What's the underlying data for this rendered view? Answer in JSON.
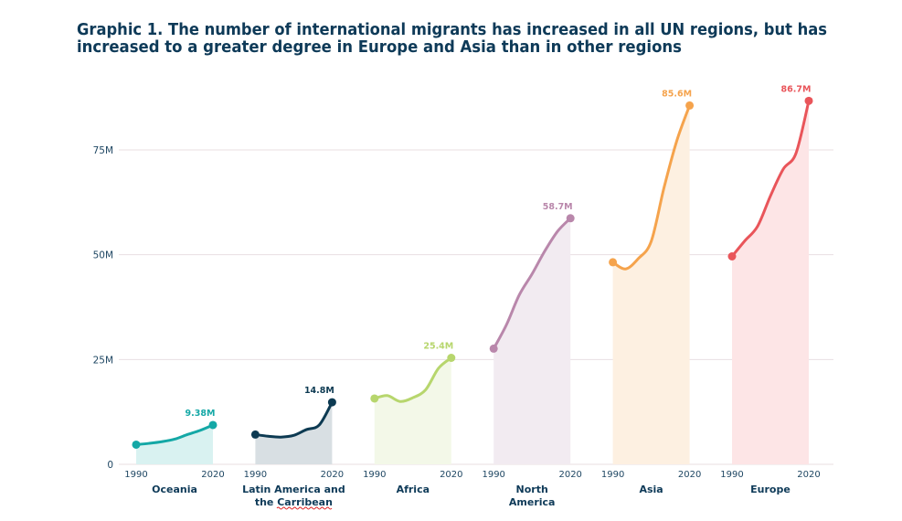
{
  "chart_data": {
    "type": "line",
    "title": "Graphic 1. The number of international migrants has increased in all UN regions, but has increased to a greater degree in Europe and Asia than in other regions",
    "title_lines": [
      "Graphic 1. The number of international migrants has increased in all UN regions, but has",
      "increased to a greater degree in Europe and Asia than in other regions"
    ],
    "xlabel": "",
    "ylabel": "",
    "x": [
      1990,
      1995,
      2000,
      2005,
      2010,
      2015,
      2020
    ],
    "xtick_labels": [
      "1990",
      "2020"
    ],
    "yticks": [
      0,
      25,
      50,
      75
    ],
    "ytick_labels": [
      "0",
      "25M",
      "50M",
      "75M"
    ],
    "ylim": [
      0,
      90
    ],
    "grid": true,
    "legend": "none",
    "series": [
      {
        "name": "Oceania",
        "label_lines": [
          "Oceania"
        ],
        "values": [
          4.7,
          5.0,
          5.4,
          6.0,
          7.1,
          8.1,
          9.38
        ],
        "end_label": "9.38M",
        "color": "#14a8a6",
        "fill": "#d9f2f1"
      },
      {
        "name": "Latin America and the Carribean",
        "label_lines": [
          "Latin America and",
          "the Carribean"
        ],
        "values": [
          7.1,
          6.7,
          6.5,
          6.9,
          8.3,
          9.4,
          14.8
        ],
        "end_label": "14.8M",
        "color": "#0d3a52",
        "fill": "#d8dfe3"
      },
      {
        "name": "Africa",
        "label_lines": [
          "Africa"
        ],
        "values": [
          15.7,
          16.4,
          15.0,
          15.9,
          17.8,
          22.9,
          25.4
        ],
        "end_label": "25.4M",
        "color": "#b7d66d",
        "fill": "#f3f8e8"
      },
      {
        "name": "North America",
        "label_lines": [
          "North",
          "America"
        ],
        "values": [
          27.6,
          33.3,
          40.4,
          45.4,
          50.9,
          55.6,
          58.7
        ],
        "end_label": "58.7M",
        "color": "#b987ab",
        "fill": "#f2ebf1"
      },
      {
        "name": "Asia",
        "label_lines": [
          "Asia"
        ],
        "values": [
          48.2,
          46.6,
          49.1,
          53.2,
          66.0,
          77.2,
          85.6
        ],
        "end_label": "85.6M",
        "color": "#f5a34c",
        "fill": "#fdf0e1"
      },
      {
        "name": "Europe",
        "label_lines": [
          "Europe"
        ],
        "values": [
          49.6,
          53.3,
          56.8,
          64.0,
          70.4,
          74.2,
          86.7
        ],
        "end_label": "86.7M",
        "color": "#e9555a",
        "fill": "#fde5e6"
      }
    ]
  }
}
